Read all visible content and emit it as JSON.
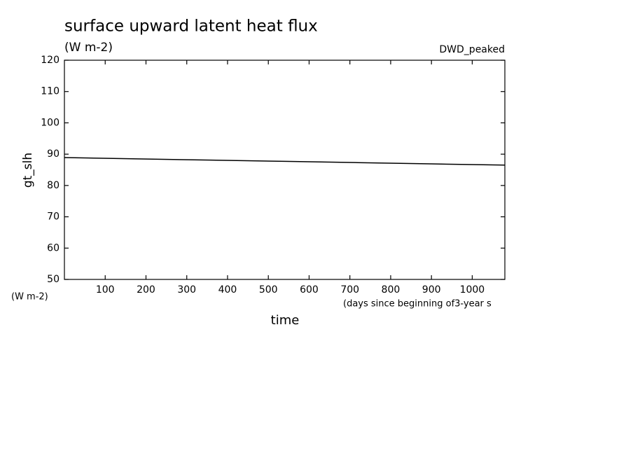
{
  "chart_data": {
    "type": "line",
    "title": "surface upward latent heat flux",
    "subtitle": "(W m-2)",
    "annotation": "DWD_peaked",
    "y_label": "gt_slh",
    "y_units": "(W m-2)",
    "x_units": "(days since beginning of3-year s",
    "x_label": "time",
    "x": [
      0,
      180,
      360,
      540,
      720,
      900,
      1080
    ],
    "series": [
      {
        "name": "gt_slh",
        "color": "#000000",
        "values": [
          88.9,
          88.5,
          88.1,
          87.7,
          87.3,
          86.9,
          86.5
        ]
      }
    ],
    "xlim": [
      0,
      1080
    ],
    "xticks": [
      100,
      200,
      300,
      400,
      500,
      600,
      700,
      800,
      900,
      1000
    ],
    "ylim": [
      50,
      120
    ],
    "yticks": [
      50,
      60,
      70,
      80,
      90,
      100,
      110,
      120
    ],
    "grid": false
  }
}
